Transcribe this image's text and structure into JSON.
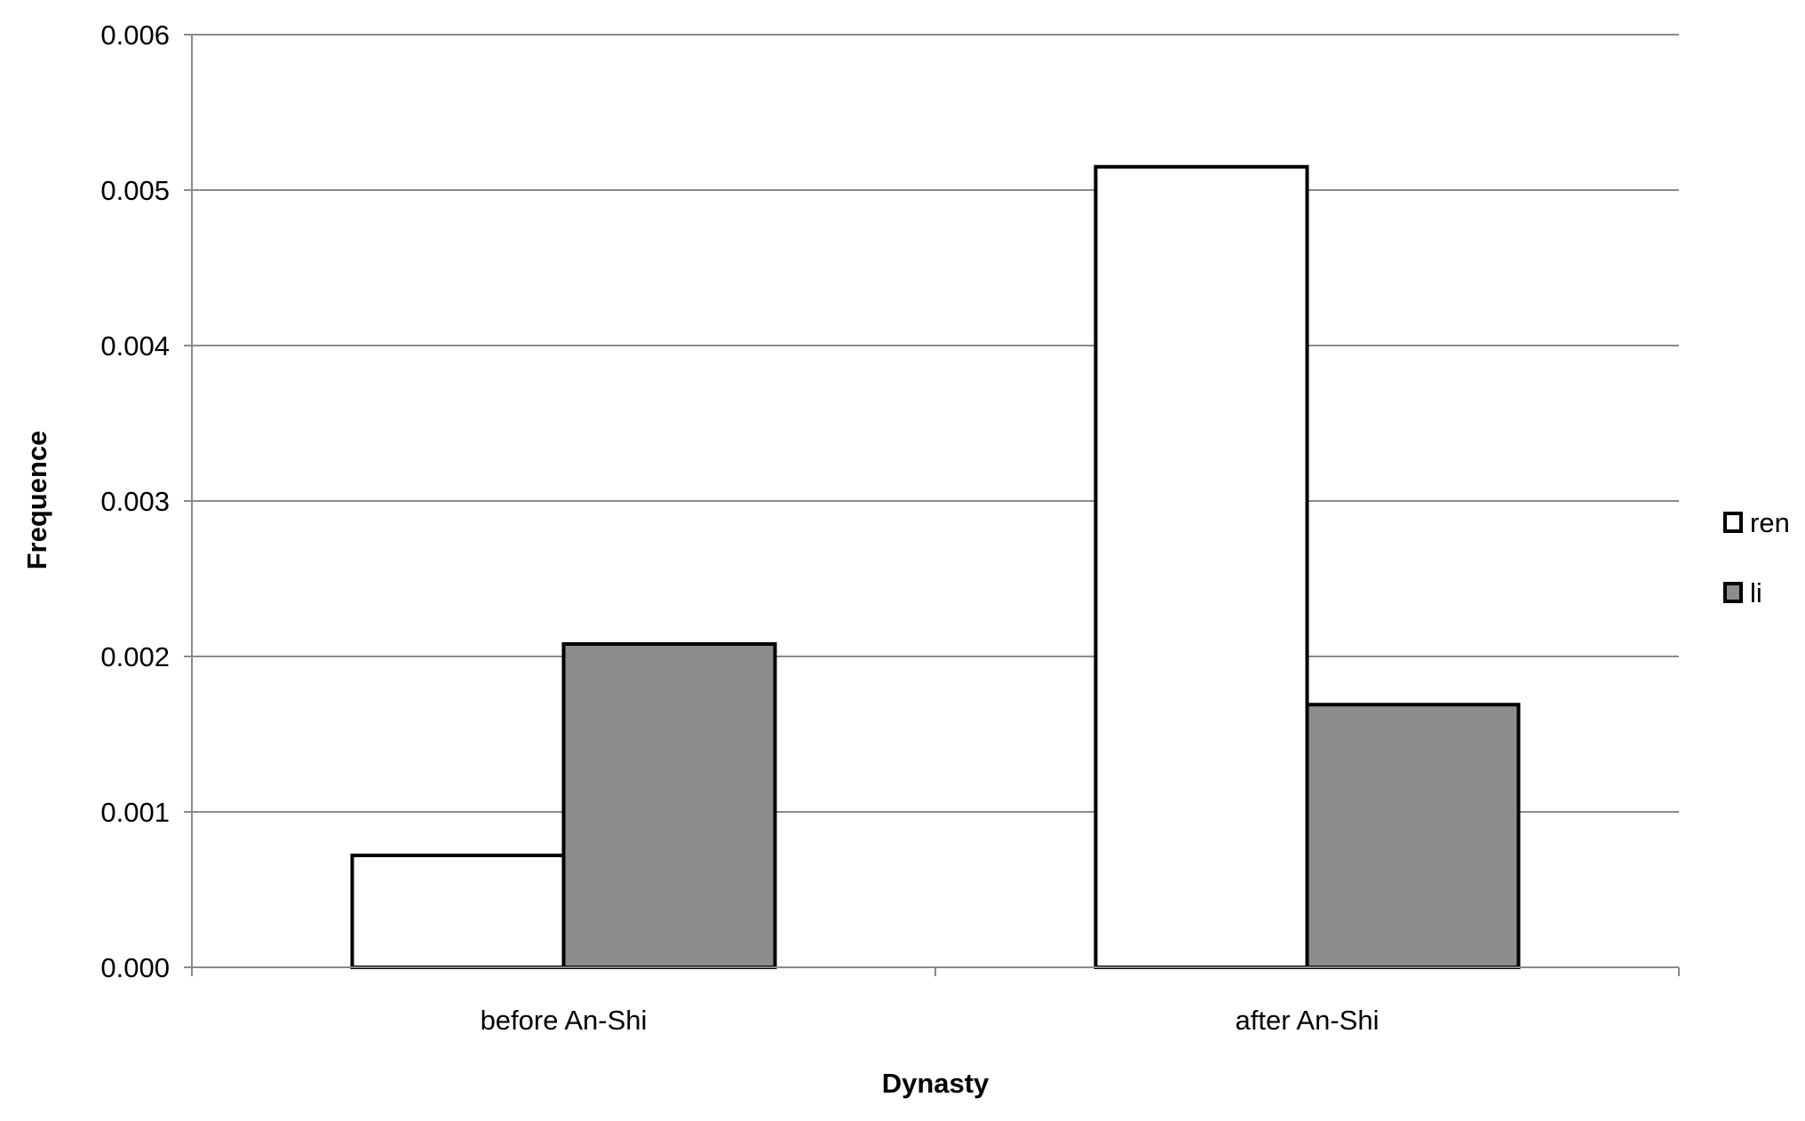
{
  "chart_data": {
    "type": "bar",
    "categories": [
      "before An-Shi",
      "after An-Shi"
    ],
    "series": [
      {
        "name": "ren",
        "values": [
          0.00072,
          0.00515
        ],
        "color": "#ffffff",
        "stroke": "#000000"
      },
      {
        "name": "li",
        "values": [
          0.00208,
          0.00169
        ],
        "color": "#8c8c8c",
        "stroke": "#000000"
      }
    ],
    "xlabel": "Dynasty",
    "ylabel": "Frequence",
    "ylim": [
      0,
      0.006
    ],
    "yticks": [
      "0.000",
      "0.001",
      "0.002",
      "0.003",
      "0.004",
      "0.005",
      "0.006"
    ],
    "grid": true,
    "legend_position": "right"
  }
}
